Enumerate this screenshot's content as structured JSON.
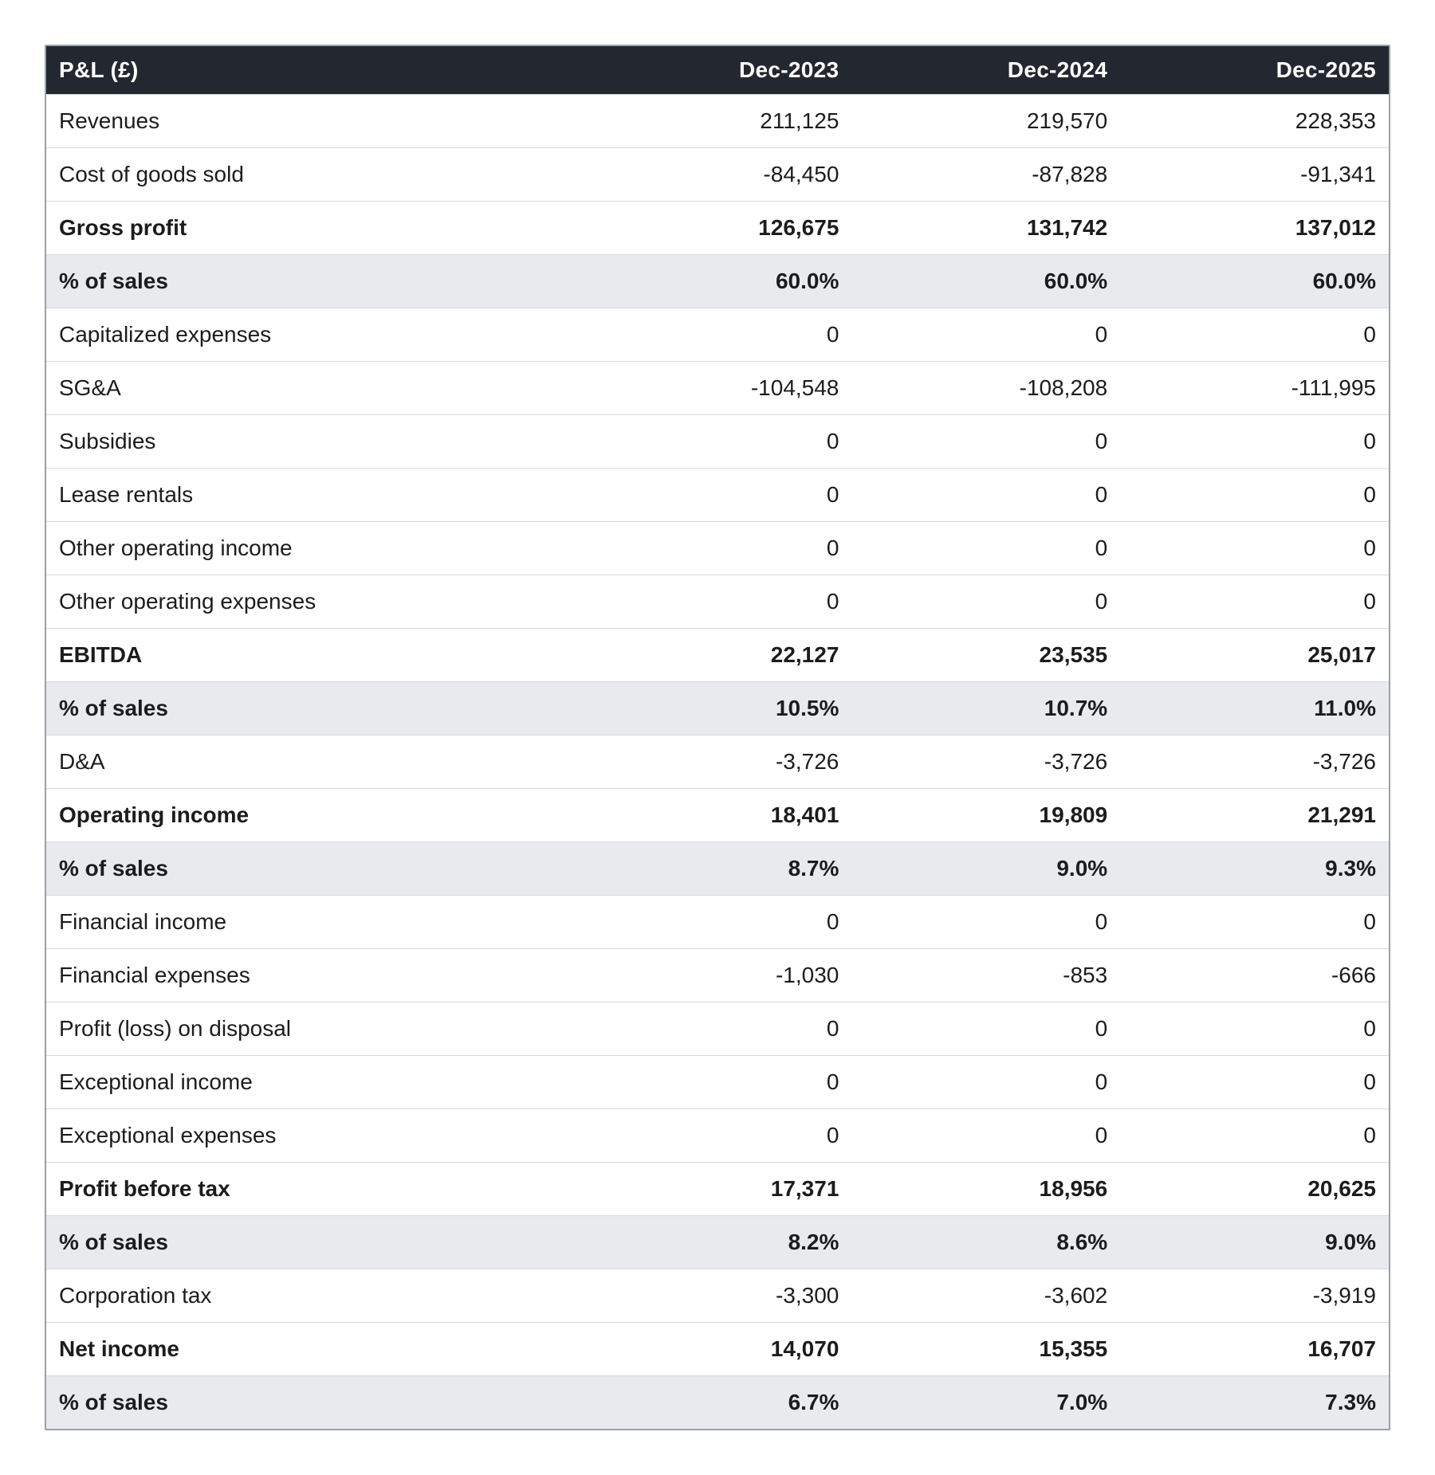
{
  "table": {
    "type": "table",
    "header_bg": "#23272f",
    "header_fg": "#ffffff",
    "row_border_color": "#d8dadd",
    "outer_border_color": "#9aa0a6",
    "shade_bg": "#e9eaee",
    "plain_bg": "#ffffff",
    "text_color": "#1c1c1c",
    "font_size_pt": 21,
    "column_widths_pct": [
      40,
      20,
      20,
      20
    ],
    "columns": [
      "P&L (£)",
      "Dec-2023",
      "Dec-2024",
      "Dec-2025"
    ],
    "rows": [
      {
        "style": "plain",
        "label": "Revenues",
        "values": [
          "211,125",
          "219,570",
          "228,353"
        ]
      },
      {
        "style": "plain",
        "label": "Cost of goods sold",
        "values": [
          "-84,450",
          "-87,828",
          "-91,341"
        ]
      },
      {
        "style": "strong",
        "label": "Gross profit",
        "values": [
          "126,675",
          "131,742",
          "137,012"
        ]
      },
      {
        "style": "strong-shade",
        "label": "% of sales",
        "values": [
          "60.0%",
          "60.0%",
          "60.0%"
        ]
      },
      {
        "style": "plain",
        "label": "Capitalized expenses",
        "values": [
          "0",
          "0",
          "0"
        ]
      },
      {
        "style": "plain",
        "label": "SG&A",
        "values": [
          "-104,548",
          "-108,208",
          "-111,995"
        ]
      },
      {
        "style": "plain",
        "label": "Subsidies",
        "values": [
          "0",
          "0",
          "0"
        ]
      },
      {
        "style": "plain",
        "label": "Lease rentals",
        "values": [
          "0",
          "0",
          "0"
        ]
      },
      {
        "style": "plain",
        "label": "Other operating income",
        "values": [
          "0",
          "0",
          "0"
        ]
      },
      {
        "style": "plain",
        "label": "Other operating expenses",
        "values": [
          "0",
          "0",
          "0"
        ]
      },
      {
        "style": "strong",
        "label": "EBITDA",
        "values": [
          "22,127",
          "23,535",
          "25,017"
        ]
      },
      {
        "style": "strong-shade",
        "label": "% of sales",
        "values": [
          "10.5%",
          "10.7%",
          "11.0%"
        ]
      },
      {
        "style": "plain",
        "label": "D&A",
        "values": [
          "-3,726",
          "-3,726",
          "-3,726"
        ]
      },
      {
        "style": "strong",
        "label": "Operating income",
        "values": [
          "18,401",
          "19,809",
          "21,291"
        ]
      },
      {
        "style": "strong-shade",
        "label": "% of sales",
        "values": [
          "8.7%",
          "9.0%",
          "9.3%"
        ]
      },
      {
        "style": "plain",
        "label": "Financial income",
        "values": [
          "0",
          "0",
          "0"
        ]
      },
      {
        "style": "plain",
        "label": "Financial expenses",
        "values": [
          "-1,030",
          "-853",
          "-666"
        ]
      },
      {
        "style": "plain",
        "label": "Profit (loss) on disposal",
        "values": [
          "0",
          "0",
          "0"
        ]
      },
      {
        "style": "plain",
        "label": "Exceptional income",
        "values": [
          "0",
          "0",
          "0"
        ]
      },
      {
        "style": "plain",
        "label": "Exceptional expenses",
        "values": [
          "0",
          "0",
          "0"
        ]
      },
      {
        "style": "strong",
        "label": "Profit before tax",
        "values": [
          "17,371",
          "18,956",
          "20,625"
        ]
      },
      {
        "style": "strong-shade",
        "label": "% of sales",
        "values": [
          "8.2%",
          "8.6%",
          "9.0%"
        ]
      },
      {
        "style": "plain",
        "label": "Corporation tax",
        "values": [
          "-3,300",
          "-3,602",
          "-3,919"
        ]
      },
      {
        "style": "strong",
        "label": "Net income",
        "values": [
          "14,070",
          "15,355",
          "16,707"
        ]
      },
      {
        "style": "strong-shade",
        "label": "% of sales",
        "values": [
          "6.7%",
          "7.0%",
          "7.3%"
        ]
      }
    ]
  }
}
